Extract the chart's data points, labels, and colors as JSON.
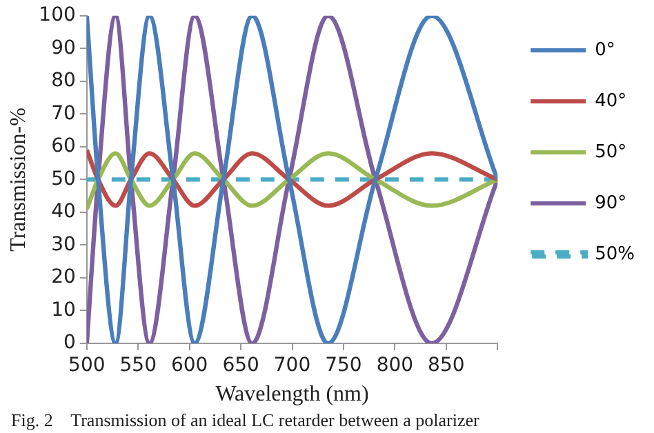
{
  "chart_data": {
    "type": "line",
    "xlabel": "Wavelength (nm)",
    "ylabel": "Transmission-%",
    "x": [
      500,
      511,
      528,
      543,
      561,
      584,
      605,
      633,
      661,
      697,
      735,
      781,
      836,
      900
    ],
    "series": [
      {
        "name": "0°",
        "color": "#4a7ebb",
        "values": [
          100,
          50,
          0,
          50,
          100,
          50,
          0,
          50,
          100,
          50,
          0,
          50,
          100,
          50
        ]
      },
      {
        "name": "40°",
        "color": "#be4b48",
        "values": [
          59,
          50,
          42,
          50,
          58,
          50,
          42,
          50,
          58,
          50,
          42,
          50,
          58,
          50
        ]
      },
      {
        "name": "50°",
        "color": "#98b954",
        "values": [
          41,
          50,
          58,
          50,
          42,
          50,
          58,
          50,
          42,
          50,
          58,
          50,
          42,
          50
        ]
      },
      {
        "name": "90°",
        "color": "#7d60a0",
        "values": [
          0,
          50,
          100,
          50,
          0,
          50,
          100,
          50,
          0,
          50,
          100,
          50,
          0,
          50
        ]
      },
      {
        "name": "50%",
        "color": "#4bacc6",
        "x": [
          500,
          900
        ],
        "values": [
          50,
          50
        ],
        "line_style": "dashed"
      }
    ],
    "xlim": [
      500,
      900
    ],
    "xticks": [
      500,
      550,
      600,
      650,
      700,
      750,
      800,
      850,
      {
        "value": 900,
        "label": null
      }
    ],
    "ylim": [
      0,
      100
    ],
    "yticks": [
      0,
      10,
      20,
      30,
      40,
      50,
      60,
      70,
      80,
      90,
      100
    ],
    "grid": false,
    "legend": "right",
    "marker": "none",
    "line_style": "solid",
    "annotations": [
      "Fig. 2    Transmission of an ideal LC retarder between a polarizer"
    ]
  }
}
